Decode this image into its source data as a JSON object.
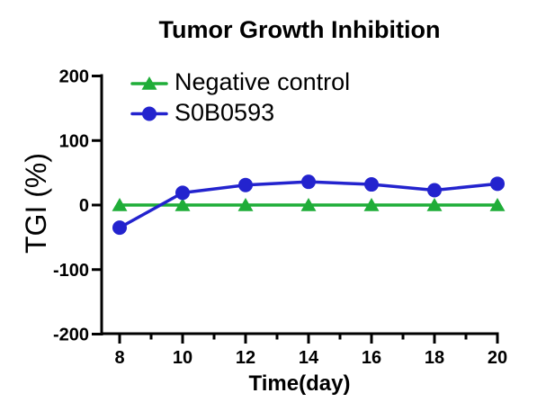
{
  "title": "Tumor Growth Inhibition",
  "legend": {
    "items": [
      {
        "label": "Negative control",
        "color": "#1FAD38",
        "marker": "triangle"
      },
      {
        "label": "S0B0593",
        "color": "#2323CE",
        "marker": "circle"
      }
    ]
  },
  "axes": {
    "x": {
      "label": "Time(day)",
      "major_ticks": [
        8,
        10,
        12,
        14,
        16,
        18,
        20
      ],
      "minor_ticks": [
        9,
        11,
        13,
        15,
        17,
        19
      ]
    },
    "y": {
      "label": "TGI (%)",
      "ticks": [
        200,
        100,
        0,
        -100,
        -200
      ]
    }
  },
  "chart_data": {
    "type": "line",
    "title": "Tumor Growth Inhibition",
    "xlabel": "Time(day)",
    "ylabel": "TGI (%)",
    "x": [
      8,
      10,
      12,
      14,
      16,
      18,
      20
    ],
    "series": [
      {
        "name": "Negative control",
        "color": "#1FAD38",
        "marker": "triangle",
        "values": [
          0,
          0,
          0,
          0,
          0,
          0,
          0
        ]
      },
      {
        "name": "S0B0593",
        "color": "#2323CE",
        "marker": "circle",
        "values": [
          -35,
          19,
          31,
          36,
          32,
          23,
          33
        ]
      }
    ],
    "xlim": [
      7.45,
      20
    ],
    "ylim": [
      -200,
      200
    ],
    "grid": false,
    "legend_position": "top-left-inside",
    "axis_color": "#000000"
  }
}
